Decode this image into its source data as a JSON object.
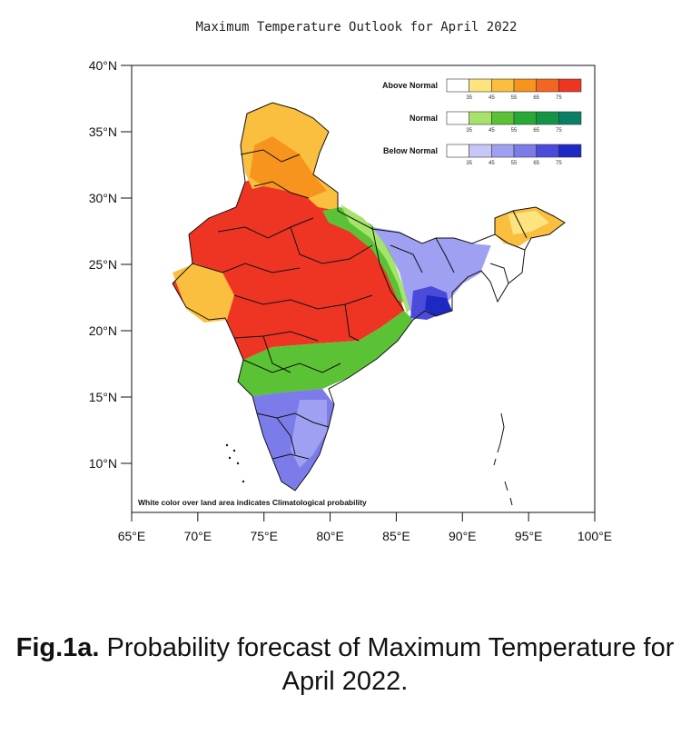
{
  "title": "Maximum Temperature Outlook for April 2022",
  "axes": {
    "lat_labels": [
      "40°N",
      "35°N",
      "30°N",
      "25°N",
      "20°N",
      "15°N",
      "10°N"
    ],
    "lat_values": [
      40,
      35,
      30,
      25,
      20,
      15,
      10
    ],
    "lon_labels": [
      "65°E",
      "70°E",
      "75°E",
      "80°E",
      "85°E",
      "90°E",
      "95°E",
      "100°E"
    ],
    "lon_values": [
      65,
      70,
      75,
      80,
      85,
      90,
      95,
      100
    ],
    "lat_range": [
      6,
      40
    ],
    "lon_range": [
      65,
      100
    ]
  },
  "legend": {
    "categories": [
      {
        "label": "Above Normal",
        "colors": [
          "#ffffff",
          "#fde47f",
          "#fbbf3f",
          "#f7941d",
          "#f26522",
          "#ee3524"
        ]
      },
      {
        "label": "Normal",
        "colors": [
          "#ffffff",
          "#a6e36b",
          "#5bc235",
          "#27a935",
          "#129447",
          "#0b7f66"
        ]
      },
      {
        "label": "Below Normal",
        "colors": [
          "#ffffff",
          "#c6c6f8",
          "#a0a0f2",
          "#7b7bea",
          "#4b4bdb",
          "#1e28c2"
        ]
      }
    ],
    "tick_labels": [
      "35",
      "45",
      "55",
      "65",
      "75"
    ]
  },
  "note": "White color over land area indicates Climatological probability",
  "caption": {
    "bold": "Fig.1a.",
    "text": " Probability forecast of Maximum Temperature for April 2022."
  }
}
